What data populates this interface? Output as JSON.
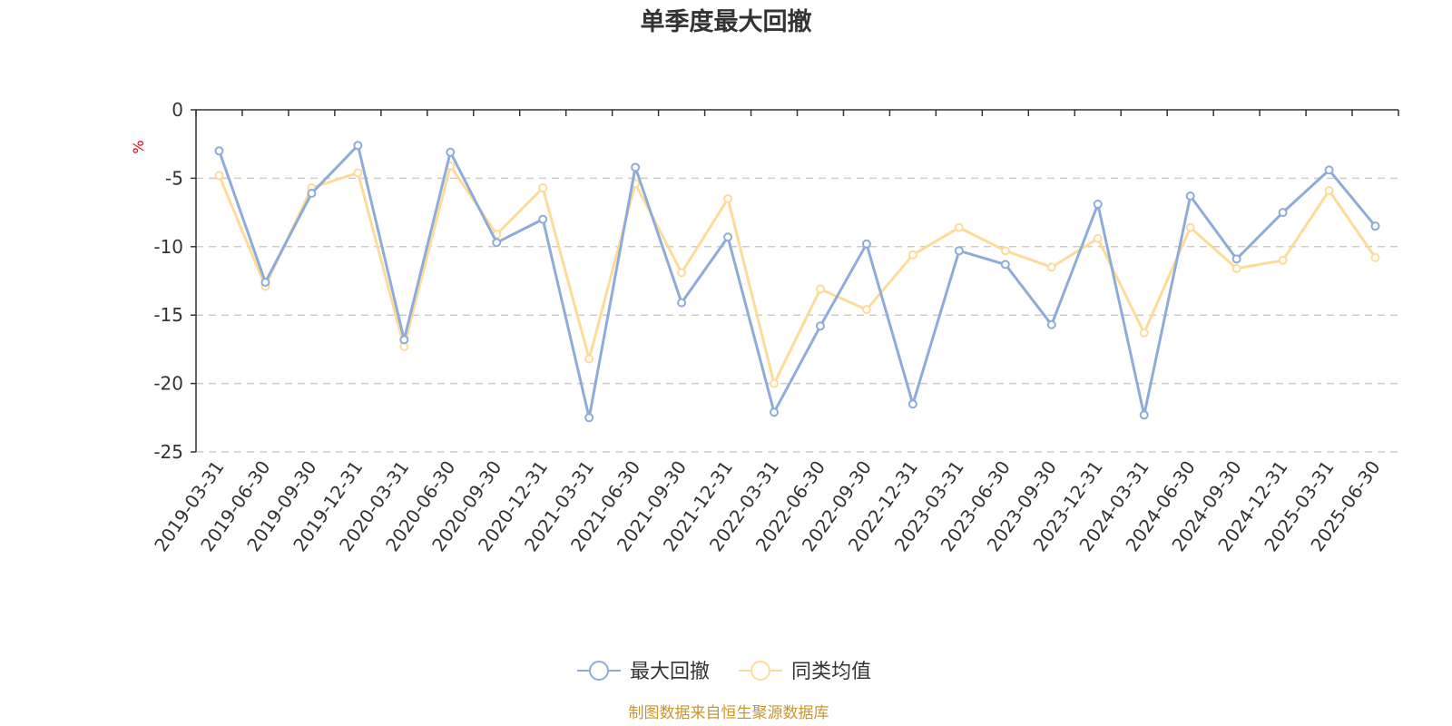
{
  "colors": {
    "series_max_drawdown": "#8eacd9",
    "series_peer_avg": "#fddc9a",
    "unit": "#e8000b",
    "source": "#c8962f",
    "axis": "#333333",
    "grid": "#cccccc"
  },
  "footer": {
    "source": "制图数据来自恒生聚源数据库"
  },
  "chart_data": {
    "type": "line",
    "title": "单季度最大回撤",
    "ylabel": "%",
    "ylim": [
      -25,
      0
    ],
    "yticks": [
      "0",
      "-5",
      "-10",
      "-15",
      "-20",
      "-25"
    ],
    "grid": "horizontal dashed",
    "legend": "bottom-center",
    "x": [
      "2019-03-31",
      "2019-06-30",
      "2019-09-30",
      "2019-12-31",
      "2020-03-31",
      "2020-06-30",
      "2020-09-30",
      "2020-12-31",
      "2021-03-31",
      "2021-06-30",
      "2021-09-30",
      "2021-12-31",
      "2022-03-31",
      "2022-06-30",
      "2022-09-30",
      "2022-12-31",
      "2023-03-31",
      "2023-06-30",
      "2023-09-30",
      "2023-12-31",
      "2024-03-31",
      "2024-06-30",
      "2024-09-30",
      "2024-12-31",
      "2025-03-31",
      "2025-06-30"
    ],
    "series": [
      {
        "name": "最大回撤",
        "values": [
          -3.0,
          -12.6,
          -6.1,
          -2.6,
          -16.8,
          -3.1,
          -9.7,
          -8.0,
          -22.5,
          -4.2,
          -14.1,
          -9.3,
          -22.1,
          -15.8,
          -9.8,
          -21.5,
          -10.3,
          -11.3,
          -15.7,
          -6.9,
          -22.3,
          -6.3,
          -10.9,
          -7.5,
          -4.4,
          -8.5
        ]
      },
      {
        "name": "同类均值",
        "values": [
          -4.8,
          -12.9,
          -5.7,
          -4.6,
          -17.3,
          -4.1,
          -9.1,
          -5.7,
          -18.2,
          -5.4,
          -11.9,
          -6.5,
          -20.0,
          -13.1,
          -14.6,
          -10.6,
          -8.6,
          -10.3,
          -11.5,
          -9.4,
          -16.3,
          -8.6,
          -11.6,
          -11.0,
          -5.9,
          -10.8
        ]
      }
    ]
  }
}
